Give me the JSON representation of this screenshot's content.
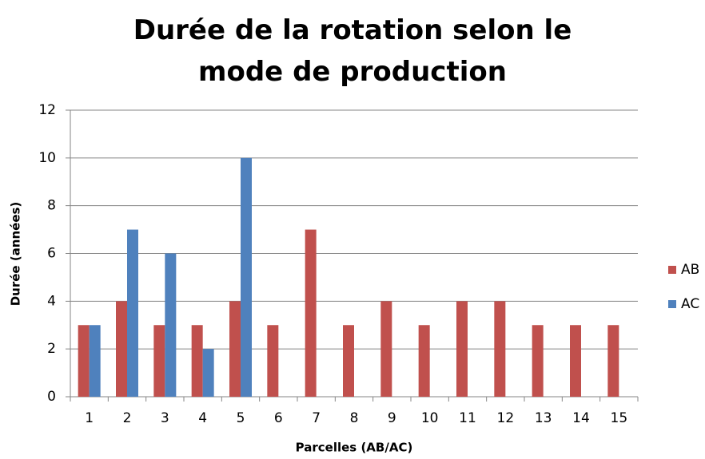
{
  "chart_data": {
    "type": "bar",
    "title": "Durée de la rotation selon le mode de production",
    "x_label": "Parcelles  (AB/AC)",
    "y_label": "Durée (années)",
    "categories": [
      "1",
      "2",
      "3",
      "4",
      "5",
      "6",
      "7",
      "8",
      "9",
      "10",
      "11",
      "12",
      "13",
      "14",
      "15"
    ],
    "series": [
      {
        "name": "AB",
        "color": "#c0504d",
        "values": [
          3,
          4,
          3,
          3,
          4,
          3,
          7,
          3,
          4,
          3,
          4,
          4,
          3,
          3,
          3
        ]
      },
      {
        "name": "AC",
        "color": "#4f81bd",
        "values": [
          3,
          7,
          6,
          2,
          10,
          null,
          null,
          null,
          null,
          null,
          null,
          null,
          null,
          null,
          null
        ]
      }
    ],
    "ylim": [
      0,
      12
    ],
    "yticks": [
      0,
      2,
      4,
      6,
      8,
      10,
      12
    ],
    "grid": true,
    "legend": "right"
  }
}
